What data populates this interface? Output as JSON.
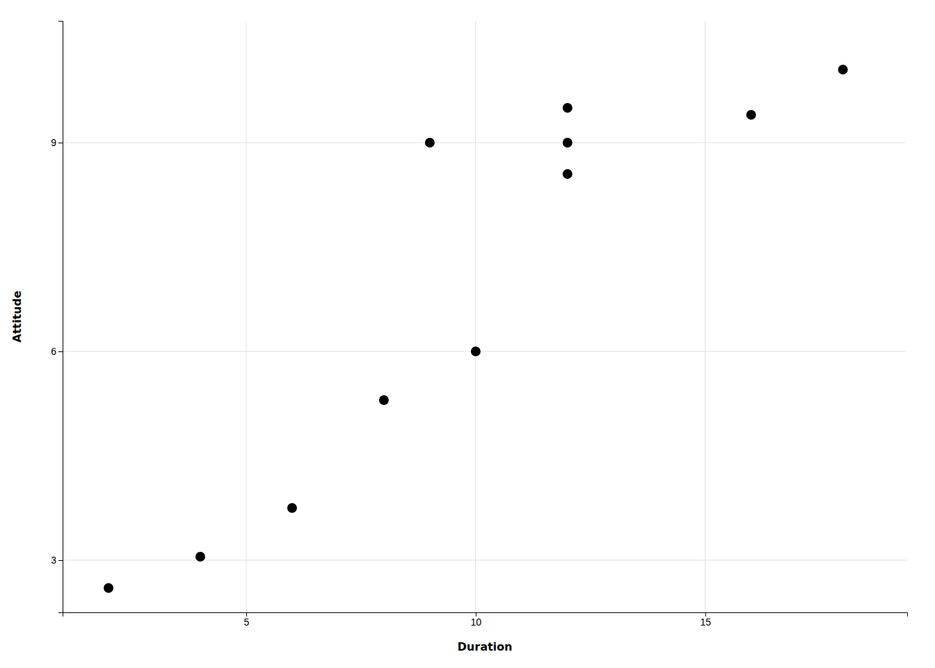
{
  "chart_data": {
    "type": "scatter",
    "x": [
      2,
      4,
      6,
      8,
      9,
      10,
      12,
      12,
      12,
      16,
      18
    ],
    "y": [
      2.6,
      3.05,
      3.75,
      5.3,
      9.0,
      6.0,
      8.55,
      9.0,
      9.5,
      9.4,
      10.05
    ],
    "xlabel": "Duration",
    "ylabel": "Attitude",
    "xlim": [
      1.0,
      19.4
    ],
    "ylim": [
      2.25,
      10.75
    ],
    "xticks": [
      5,
      10,
      15
    ],
    "yticks": [
      3,
      6,
      9
    ],
    "color": "#000000",
    "grid": true
  }
}
